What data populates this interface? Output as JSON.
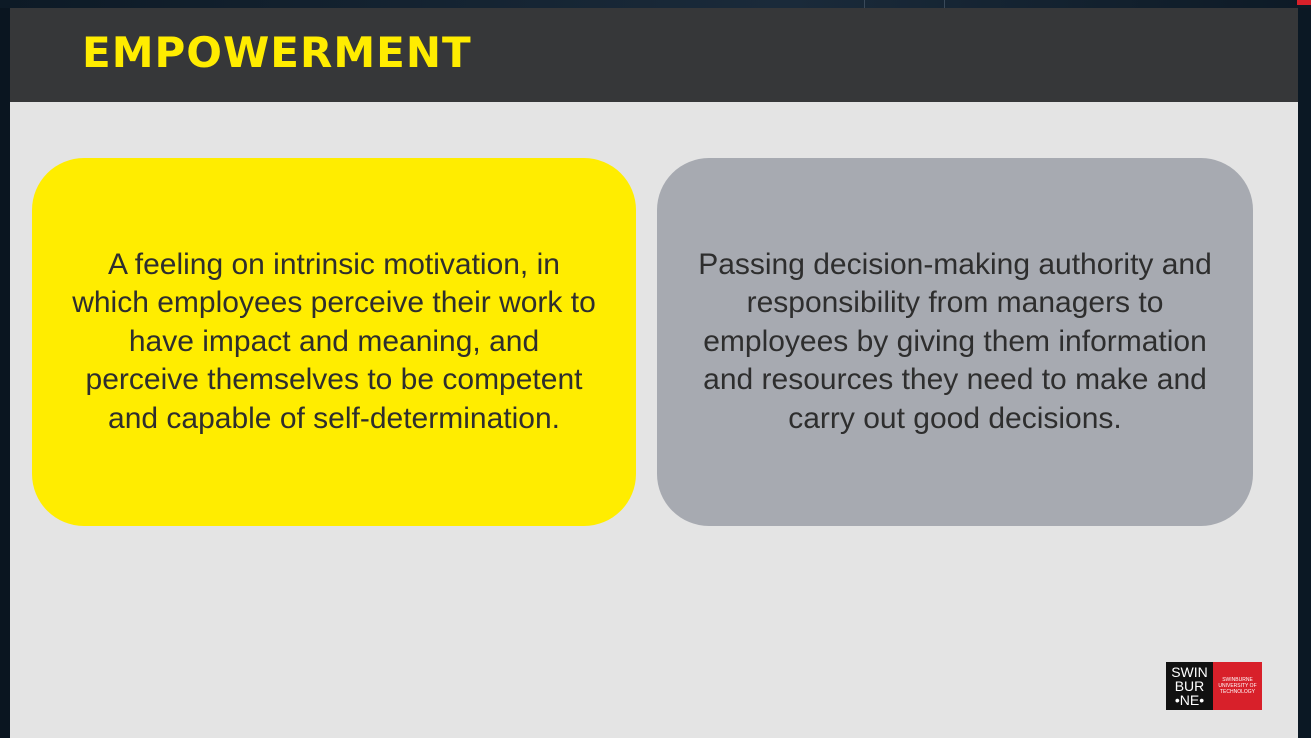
{
  "slide": {
    "title": "EMPOWERMENT",
    "cards": [
      {
        "text": "A feeling on intrinsic motivation, in which employees perceive their work to have impact and meaning, and perceive themselves to be competent and capable of self-determination."
      },
      {
        "text": "Passing decision-making authority and responsibility from managers to employees by giving them information and resources they need to make and carry out good decisions."
      }
    ]
  },
  "logo": {
    "line1": "SWIN",
    "line2": "BUR",
    "line3": "•NE•",
    "subtext": "SWINBURNE UNIVERSITY OF TECHNOLOGY"
  },
  "colors": {
    "accent": "#ffed00",
    "header": "#363739",
    "grey_card": "#a7aab1",
    "logo_red": "#d8202a"
  }
}
